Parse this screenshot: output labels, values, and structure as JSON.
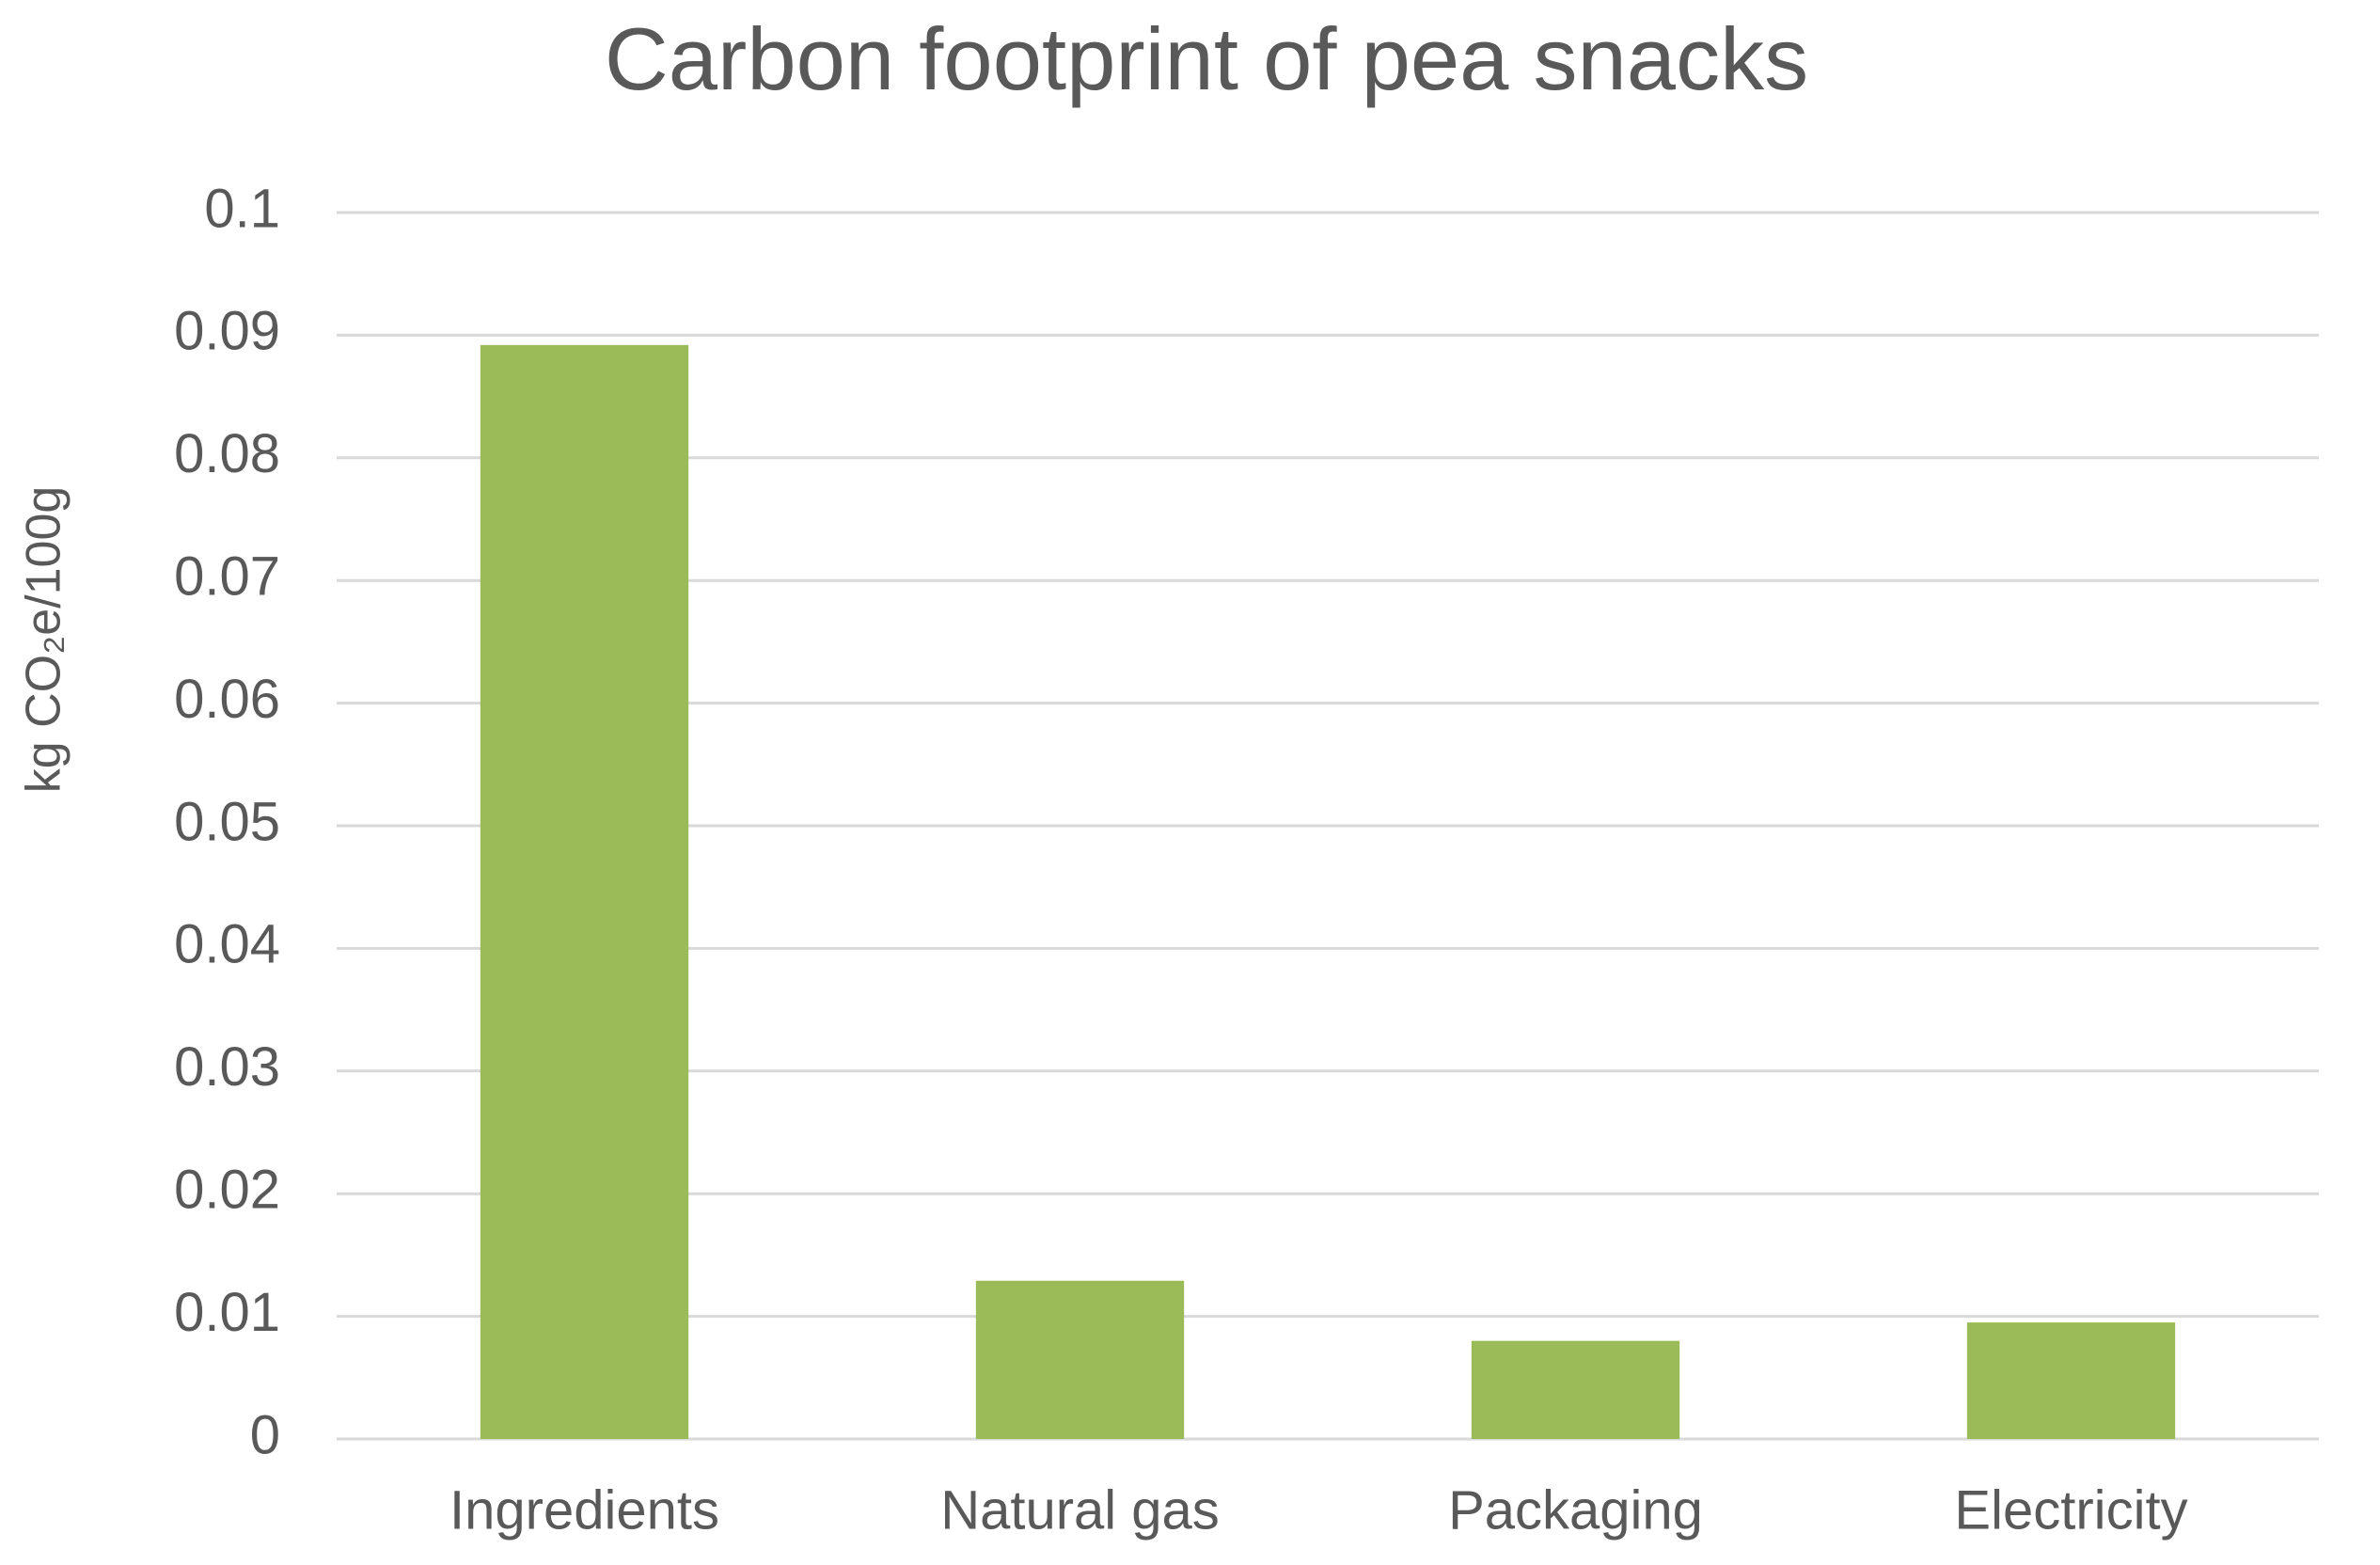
{
  "chart_data": {
    "type": "bar",
    "title": "Carbon footprint of pea snacks",
    "y_label": "kg CO₂e/100g",
    "categories": [
      "Ingredients",
      "Natural gas",
      "Packaging",
      "Electricity"
    ],
    "values": [
      0.0892,
      0.0129,
      0.008,
      0.0095
    ],
    "color": "#9bbb59",
    "ylim": [
      0,
      0.1
    ],
    "yticks": [
      0,
      0.01,
      0.02,
      0.03,
      0.04,
      0.05,
      0.06,
      0.07,
      0.08,
      0.09,
      0.1
    ],
    "grid": true
  }
}
